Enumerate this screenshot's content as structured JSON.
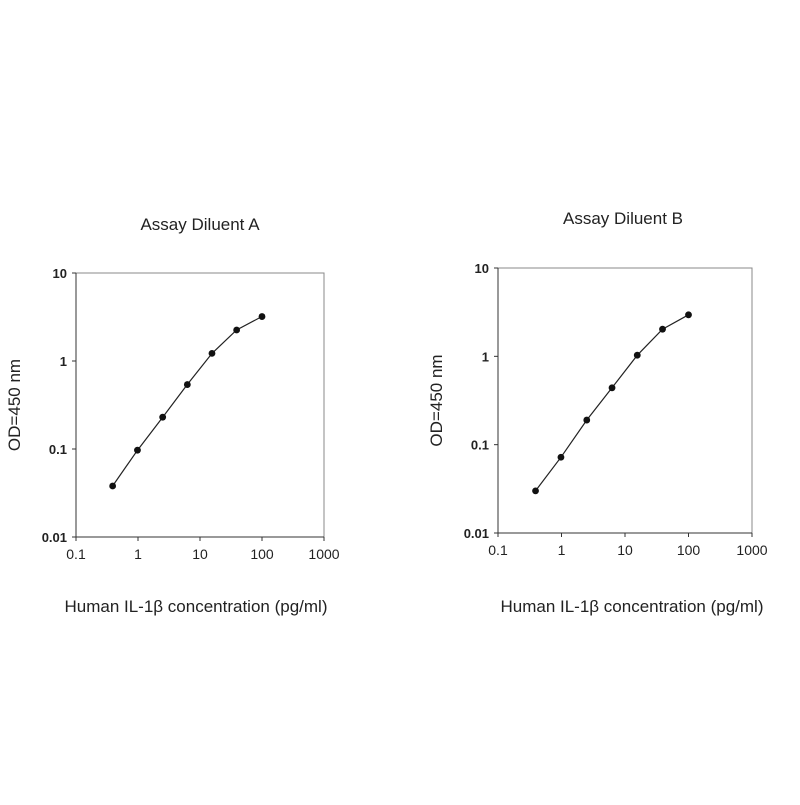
{
  "chart_data": [
    {
      "type": "line",
      "title": "Assay Diluent A",
      "xlabel": "Human IL-1β  concentration (pg/ml)",
      "ylabel": "OD=450 nm",
      "xscale": "log",
      "yscale": "log",
      "xlim": [
        0.1,
        1000
      ],
      "ylim": [
        0.01,
        10
      ],
      "x_ticks": [
        "0.1",
        "1",
        "10",
        "100",
        "1000"
      ],
      "y_ticks": [
        "0.01",
        "0.1",
        "1",
        "10"
      ],
      "grid": false,
      "legend": "none",
      "series": [
        {
          "x": [
            0.39,
            0.98,
            2.5,
            6.25,
            15.6,
            39,
            100
          ],
          "y": [
            0.038,
            0.097,
            0.23,
            0.54,
            1.22,
            2.25,
            3.2
          ]
        }
      ]
    },
    {
      "type": "line",
      "title": "Assay Diluent B",
      "xlabel": "Human IL-1β  concentration (pg/ml)",
      "ylabel": "OD=450 nm",
      "xscale": "log",
      "yscale": "log",
      "xlim": [
        0.1,
        1000
      ],
      "ylim": [
        0.01,
        10
      ],
      "x_ticks": [
        "0.1",
        "1",
        "10",
        "100",
        "1000"
      ],
      "y_ticks": [
        "0.01",
        "0.1",
        "1",
        "10"
      ],
      "grid": false,
      "legend": "none",
      "series": [
        {
          "x": [
            0.39,
            0.98,
            2.5,
            6.25,
            15.6,
            39,
            100
          ],
          "y": [
            0.03,
            0.072,
            0.19,
            0.44,
            1.03,
            2.03,
            2.95
          ]
        }
      ]
    }
  ]
}
